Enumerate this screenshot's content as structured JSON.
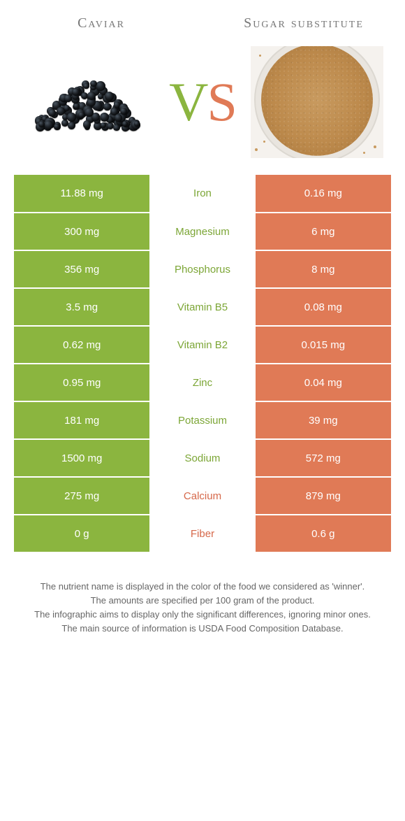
{
  "header": {
    "left_title": "Caviar",
    "right_title": "Sugar substitute",
    "vs_v": "V",
    "vs_s": "S"
  },
  "colors": {
    "green": "#8bb53f",
    "orange": "#e07a56",
    "mid_green_text": "#7ca636",
    "mid_orange_text": "#d6684a",
    "background": "#ffffff"
  },
  "rows": [
    {
      "nutrient": "Iron",
      "left": "11.88 mg",
      "right": "0.16 mg",
      "winner": "left"
    },
    {
      "nutrient": "Magnesium",
      "left": "300 mg",
      "right": "6 mg",
      "winner": "left"
    },
    {
      "nutrient": "Phosphorus",
      "left": "356 mg",
      "right": "8 mg",
      "winner": "left"
    },
    {
      "nutrient": "Vitamin B5",
      "left": "3.5 mg",
      "right": "0.08 mg",
      "winner": "left"
    },
    {
      "nutrient": "Vitamin B2",
      "left": "0.62 mg",
      "right": "0.015 mg",
      "winner": "left"
    },
    {
      "nutrient": "Zinc",
      "left": "0.95 mg",
      "right": "0.04 mg",
      "winner": "left"
    },
    {
      "nutrient": "Potassium",
      "left": "181 mg",
      "right": "39 mg",
      "winner": "left"
    },
    {
      "nutrient": "Sodium",
      "left": "1500 mg",
      "right": "572 mg",
      "winner": "left"
    },
    {
      "nutrient": "Calcium",
      "left": "275 mg",
      "right": "879 mg",
      "winner": "right"
    },
    {
      "nutrient": "Fiber",
      "left": "0 g",
      "right": "0.6 g",
      "winner": "right"
    }
  ],
  "footer": {
    "line1": "The nutrient name is displayed in the color of the food we considered as 'winner'.",
    "line2": "The amounts are specified per 100 gram of the product.",
    "line3": "The infographic aims to display only the significant differences, ignoring minor ones.",
    "line4": "The main source of information is USDA Food Composition Database."
  }
}
